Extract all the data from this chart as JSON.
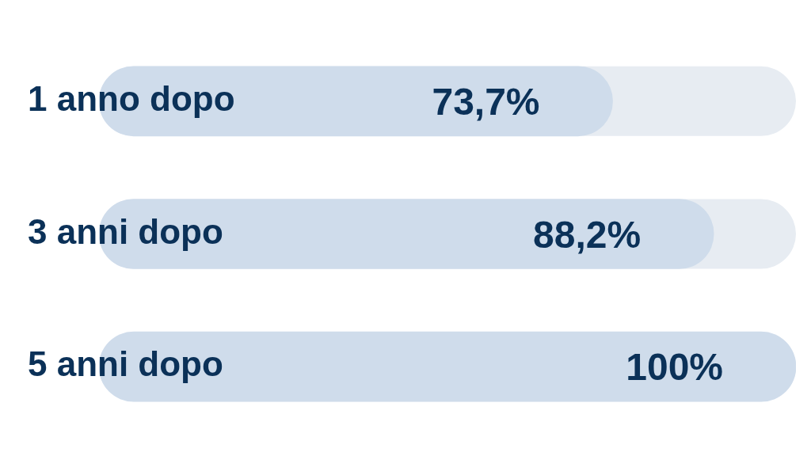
{
  "chart_data": {
    "type": "bar",
    "orientation": "horizontal",
    "categories": [
      "1 anno dopo",
      "3 anni dopo",
      "5 anni dopo"
    ],
    "values": [
      73.7,
      88.2,
      100
    ],
    "color": "#cfdceb",
    "value_labels": [
      "73,7%",
      "88,2%",
      "100%"
    ],
    "xlim": [
      0,
      100
    ],
    "tick_labels": "y"
  }
}
